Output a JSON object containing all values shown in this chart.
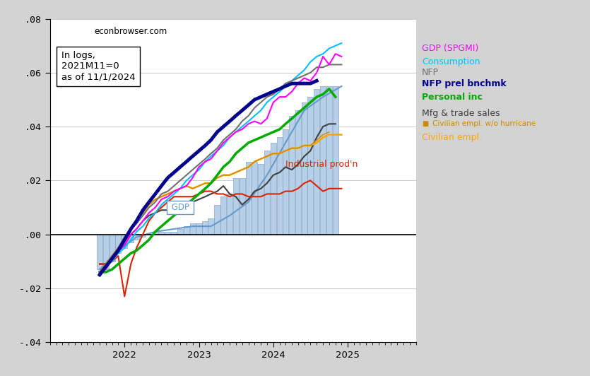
{
  "ylim": [
    -0.04,
    0.08
  ],
  "yticks": [
    -0.04,
    -0.02,
    0.0,
    0.02,
    0.04,
    0.06,
    0.08
  ],
  "ytick_labels": [
    "-.04",
    "-.02",
    ".00",
    ".02",
    ".04",
    ".06",
    ".08"
  ],
  "background_color": "#d3d3d3",
  "plot_background": "#ffffff",
  "gdp_quarters_idx": [
    0,
    3,
    6,
    9,
    12,
    15,
    18,
    21,
    24,
    27,
    30,
    33,
    36,
    39
  ],
  "gdp_values": [
    -0.013,
    -0.006,
    -0.001,
    0.001,
    0.002,
    0.003,
    0.003,
    0.007,
    0.012,
    0.022,
    0.034,
    0.046,
    0.051,
    0.055
  ],
  "bars_idx": [
    0,
    1,
    2,
    3,
    4,
    5,
    6,
    7,
    8,
    9,
    10,
    11,
    12,
    13,
    14,
    15,
    16,
    17,
    18,
    19,
    20,
    21,
    22,
    23,
    24,
    25,
    26,
    27,
    28,
    29,
    30,
    31,
    32,
    33,
    34,
    35,
    36,
    37,
    38
  ],
  "bars_values": [
    -0.013,
    -0.013,
    -0.01,
    -0.007,
    -0.005,
    -0.003,
    -0.002,
    -0.001,
    0.0,
    0.001,
    0.001,
    0.001,
    0.001,
    0.002,
    0.003,
    0.004,
    0.004,
    0.005,
    0.006,
    0.011,
    0.014,
    0.015,
    0.021,
    0.021,
    0.027,
    0.027,
    0.026,
    0.031,
    0.034,
    0.036,
    0.039,
    0.044,
    0.046,
    0.049,
    0.051,
    0.054,
    0.055,
    0.055,
    0.055
  ],
  "nfp_idx": [
    0,
    1,
    2,
    3,
    4,
    5,
    6,
    7,
    8,
    9,
    10,
    11,
    12,
    13,
    14,
    15,
    16,
    17,
    18,
    19,
    20,
    21,
    22,
    23,
    24,
    25,
    26,
    27,
    28,
    29,
    30,
    31,
    32,
    33,
    34,
    35,
    36,
    37,
    38,
    39
  ],
  "nfp_values": [
    -0.014,
    -0.011,
    -0.008,
    -0.005,
    -0.001,
    0.002,
    0.004,
    0.007,
    0.01,
    0.012,
    0.015,
    0.016,
    0.018,
    0.02,
    0.022,
    0.024,
    0.026,
    0.028,
    0.03,
    0.032,
    0.035,
    0.037,
    0.039,
    0.042,
    0.044,
    0.047,
    0.049,
    0.051,
    0.052,
    0.054,
    0.056,
    0.057,
    0.058,
    0.059,
    0.06,
    0.062,
    0.062,
    0.063,
    0.063,
    0.063
  ],
  "nfp_bench_idx": [
    0,
    1,
    2,
    3,
    4,
    5,
    6,
    7,
    8,
    9,
    10,
    11,
    12,
    13,
    14,
    15,
    16,
    17,
    18,
    19,
    20,
    21,
    22,
    23,
    24,
    25,
    26,
    27,
    28,
    29,
    30,
    31,
    32,
    33,
    34,
    35
  ],
  "nfp_bench_values": [
    -0.015,
    -0.012,
    -0.009,
    -0.006,
    -0.002,
    0.002,
    0.005,
    0.009,
    0.012,
    0.015,
    0.018,
    0.021,
    0.023,
    0.025,
    0.027,
    0.029,
    0.031,
    0.033,
    0.035,
    0.038,
    0.04,
    0.042,
    0.044,
    0.046,
    0.048,
    0.05,
    0.051,
    0.052,
    0.053,
    0.054,
    0.055,
    0.056,
    0.056,
    0.056,
    0.056,
    0.057
  ],
  "consumption_idx": [
    0,
    1,
    2,
    3,
    4,
    5,
    6,
    7,
    8,
    9,
    10,
    11,
    12,
    13,
    14,
    15,
    16,
    17,
    18,
    19,
    20,
    21,
    22,
    23,
    24,
    25,
    26,
    27,
    28,
    29,
    30,
    31,
    32,
    33,
    34,
    35,
    36,
    37,
    38,
    39
  ],
  "consumption_values": [
    -0.014,
    -0.012,
    -0.01,
    -0.007,
    -0.005,
    -0.002,
    0.001,
    0.003,
    0.006,
    0.008,
    0.011,
    0.013,
    0.015,
    0.017,
    0.02,
    0.022,
    0.024,
    0.027,
    0.029,
    0.031,
    0.033,
    0.036,
    0.038,
    0.04,
    0.042,
    0.044,
    0.046,
    0.049,
    0.051,
    0.053,
    0.055,
    0.057,
    0.059,
    0.061,
    0.064,
    0.066,
    0.067,
    0.069,
    0.07,
    0.071
  ],
  "personal_inc_idx": [
    0,
    1,
    2,
    3,
    4,
    5,
    6,
    7,
    8,
    9,
    10,
    11,
    12,
    13,
    14,
    15,
    16,
    17,
    18,
    19,
    20,
    21,
    22,
    23,
    24,
    25,
    26,
    27,
    28,
    29,
    30,
    31,
    32,
    33,
    34,
    35,
    36,
    37,
    38
  ],
  "personal_inc_values": [
    -0.014,
    -0.014,
    -0.013,
    -0.011,
    -0.009,
    -0.007,
    -0.006,
    -0.004,
    -0.002,
    0.001,
    0.003,
    0.005,
    0.007,
    0.009,
    0.011,
    0.013,
    0.015,
    0.017,
    0.019,
    0.022,
    0.025,
    0.027,
    0.03,
    0.032,
    0.034,
    0.035,
    0.036,
    0.037,
    0.038,
    0.039,
    0.041,
    0.043,
    0.045,
    0.047,
    0.049,
    0.051,
    0.052,
    0.054,
    0.051
  ],
  "mfg_trade_idx": [
    0,
    1,
    2,
    3,
    4,
    5,
    6,
    7,
    8,
    9,
    10,
    11,
    12,
    13,
    14,
    15,
    16,
    17,
    18,
    19,
    20,
    21,
    22,
    23,
    24,
    25,
    26,
    27,
    28,
    29,
    30,
    31,
    32,
    33,
    34,
    35,
    36,
    37,
    38
  ],
  "mfg_trade_values": [
    -0.011,
    -0.011,
    -0.009,
    -0.006,
    -0.004,
    0.0,
    0.002,
    0.005,
    0.007,
    0.008,
    0.009,
    0.009,
    0.01,
    0.011,
    0.011,
    0.012,
    0.013,
    0.014,
    0.015,
    0.016,
    0.018,
    0.015,
    0.014,
    0.011,
    0.013,
    0.016,
    0.017,
    0.019,
    0.022,
    0.023,
    0.025,
    0.024,
    0.026,
    0.029,
    0.031,
    0.036,
    0.04,
    0.041,
    0.041
  ],
  "civ_empl_idx": [
    0,
    1,
    2,
    3,
    4,
    5,
    6,
    7,
    8,
    9,
    10,
    11,
    12,
    13,
    14,
    15,
    16,
    17,
    18,
    19,
    20,
    21,
    22,
    23,
    24,
    25,
    26,
    27,
    28,
    29,
    30,
    31,
    32,
    33,
    34,
    35,
    36,
    37,
    38,
    39
  ],
  "civ_empl_values": [
    -0.014,
    -0.011,
    -0.008,
    -0.005,
    -0.002,
    0.002,
    0.005,
    0.008,
    0.011,
    0.013,
    0.014,
    0.015,
    0.016,
    0.017,
    0.018,
    0.017,
    0.018,
    0.019,
    0.019,
    0.021,
    0.022,
    0.022,
    0.023,
    0.024,
    0.025,
    0.027,
    0.028,
    0.029,
    0.03,
    0.03,
    0.031,
    0.032,
    0.032,
    0.033,
    0.033,
    0.034,
    0.036,
    0.037,
    0.037,
    0.037
  ],
  "civ_hurr_idx": [
    0,
    1,
    2,
    3,
    4,
    5,
    6,
    7,
    8,
    9,
    10,
    11,
    12,
    13,
    14,
    15,
    16,
    17,
    18,
    19,
    20,
    21,
    22,
    23,
    24,
    25,
    26,
    27,
    28,
    29,
    30,
    31,
    32,
    33,
    34,
    35,
    36,
    37
  ],
  "civ_hurr_values": [
    -0.014,
    -0.011,
    -0.008,
    -0.005,
    -0.002,
    0.002,
    0.005,
    0.008,
    0.011,
    0.013,
    0.014,
    0.015,
    0.016,
    0.017,
    0.018,
    0.017,
    0.018,
    0.019,
    0.019,
    0.021,
    0.022,
    0.022,
    0.023,
    0.024,
    0.025,
    0.027,
    0.028,
    0.029,
    0.03,
    0.03,
    0.031,
    0.032,
    0.032,
    0.033,
    0.033,
    0.035,
    0.037,
    0.038
  ],
  "indprod_idx": [
    0,
    1,
    2,
    3,
    4,
    5,
    6,
    7,
    8,
    9,
    10,
    11,
    12,
    13,
    14,
    15,
    16,
    17,
    18,
    19,
    20,
    21,
    22,
    23,
    24,
    25,
    26,
    27,
    28,
    29,
    30,
    31,
    32,
    33,
    34,
    35,
    36,
    37,
    38,
    39
  ],
  "indprod_values": [
    -0.011,
    -0.011,
    -0.01,
    -0.008,
    -0.023,
    -0.011,
    -0.005,
    0.0,
    0.005,
    0.008,
    0.01,
    0.012,
    0.014,
    0.014,
    0.014,
    0.014,
    0.015,
    0.016,
    0.016,
    0.015,
    0.015,
    0.014,
    0.015,
    0.015,
    0.014,
    0.014,
    0.014,
    0.015,
    0.015,
    0.015,
    0.016,
    0.016,
    0.017,
    0.019,
    0.02,
    0.018,
    0.016,
    0.017,
    0.017,
    0.017
  ],
  "gdpspgmi_idx": [
    0,
    1,
    2,
    3,
    4,
    5,
    6,
    7,
    8,
    9,
    10,
    11,
    12,
    13,
    14,
    15,
    16,
    17,
    18,
    19,
    20,
    21,
    22,
    23,
    24,
    25,
    26,
    27,
    28,
    29,
    30,
    31,
    32,
    33,
    34,
    35,
    36,
    37,
    38,
    39
  ],
  "gdpspgmi_values": [
    -0.014,
    -0.013,
    -0.009,
    -0.006,
    -0.004,
    0.0,
    0.002,
    0.005,
    0.008,
    0.01,
    0.013,
    0.014,
    0.016,
    0.017,
    0.018,
    0.021,
    0.025,
    0.027,
    0.028,
    0.031,
    0.034,
    0.036,
    0.038,
    0.039,
    0.041,
    0.042,
    0.041,
    0.043,
    0.049,
    0.051,
    0.051,
    0.053,
    0.056,
    0.058,
    0.057,
    0.06,
    0.066,
    0.063,
    0.067,
    0.066
  ],
  "colors": {
    "bars": "#b8cfe8",
    "bars_edge": "#7098b8",
    "gdp": "#6699cc",
    "nfp": "#707070",
    "nfp_bench": "#00008b",
    "consumption": "#00bfff",
    "personal_inc": "#00aa00",
    "mfg_trade": "#404040",
    "civ_empl": "#ffa500",
    "civ_hurr": "#cc8800",
    "indprod": "#dd2200",
    "gdpspgmi": "#ff00ff"
  },
  "label_texts": {
    "gdpspgmi": "GDP (SPGMI)",
    "consumption": "Consumption",
    "nfp": "NFP",
    "nfp_bench": "NFP prel bnchmk",
    "personal_inc": "Personal inc",
    "mfg_trade": "Mfg & trade sales",
    "civ_hurr": "Civilian empl. w/o hurricane",
    "civ_empl": "Civilian empl.",
    "indprod": "Industrial prod'n",
    "gdp": "GDP"
  },
  "watermark": "econbrowser.com",
  "annotation": "In logs,\n2021M11=0\nas of 11/1/2024"
}
